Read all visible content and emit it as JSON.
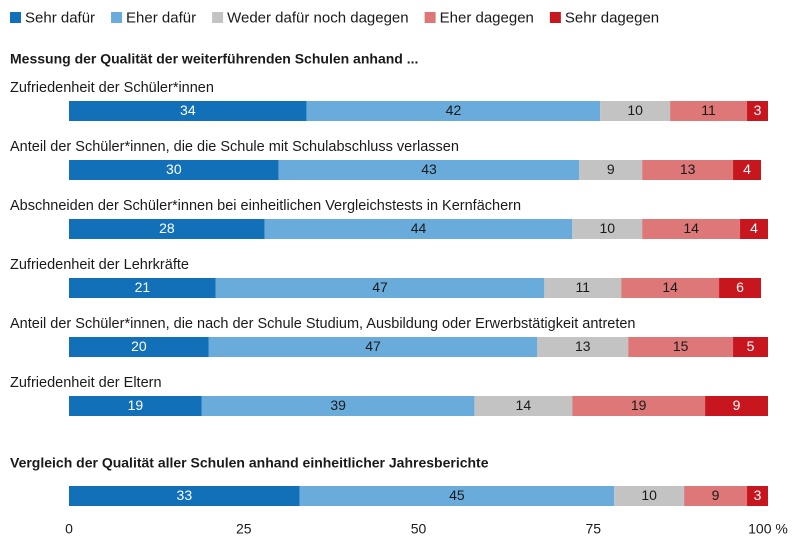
{
  "chart_data": {
    "type": "stacked-bar-horizontal",
    "headings": [
      "Messung der Qualität der weiterführenden Schulen anhand ...",
      "Vergleich der Qualität aller Schulen anhand einheitlicher Jahresberichte"
    ],
    "categories": [
      "Zufriedenheit der Schüler*innen",
      "Anteil der Schüler*innen, die die Schule mit Schulabschluss verlassen",
      "Abschneiden der Schüler*innen bei einheitlichen Vergleichstests in Kernfächern",
      "Zufriedenheit der Lehrkräfte",
      "Anteil der Schüler*innen, die nach der Schule Studium, Ausbildung oder Erwerbstätigkeit antreten",
      "Zufriedenheit der Eltern",
      null
    ],
    "series": [
      {
        "name": "Sehr dafür",
        "color": "#1170b8",
        "values": [
          34,
          30,
          28,
          21,
          20,
          19,
          33
        ]
      },
      {
        "name": "Eher dafür",
        "color": "#69acdc",
        "values": [
          42,
          43,
          44,
          47,
          47,
          39,
          45
        ]
      },
      {
        "name": "Weder dafür noch dagegen",
        "color": "#c3c3c3",
        "values": [
          10,
          9,
          10,
          11,
          13,
          14,
          10
        ]
      },
      {
        "name": "Eher dagegen",
        "color": "#de7878",
        "values": [
          11,
          13,
          14,
          14,
          15,
          19,
          9
        ]
      },
      {
        "name": "Sehr dagegen",
        "color": "#c8161e",
        "values": [
          3,
          4,
          4,
          6,
          5,
          9,
          3
        ]
      }
    ],
    "xlim": [
      0,
      100
    ],
    "xticks": [
      0,
      25,
      50,
      75,
      {
        "value": 100,
        "label": "100 %"
      }
    ],
    "legend": "top"
  }
}
